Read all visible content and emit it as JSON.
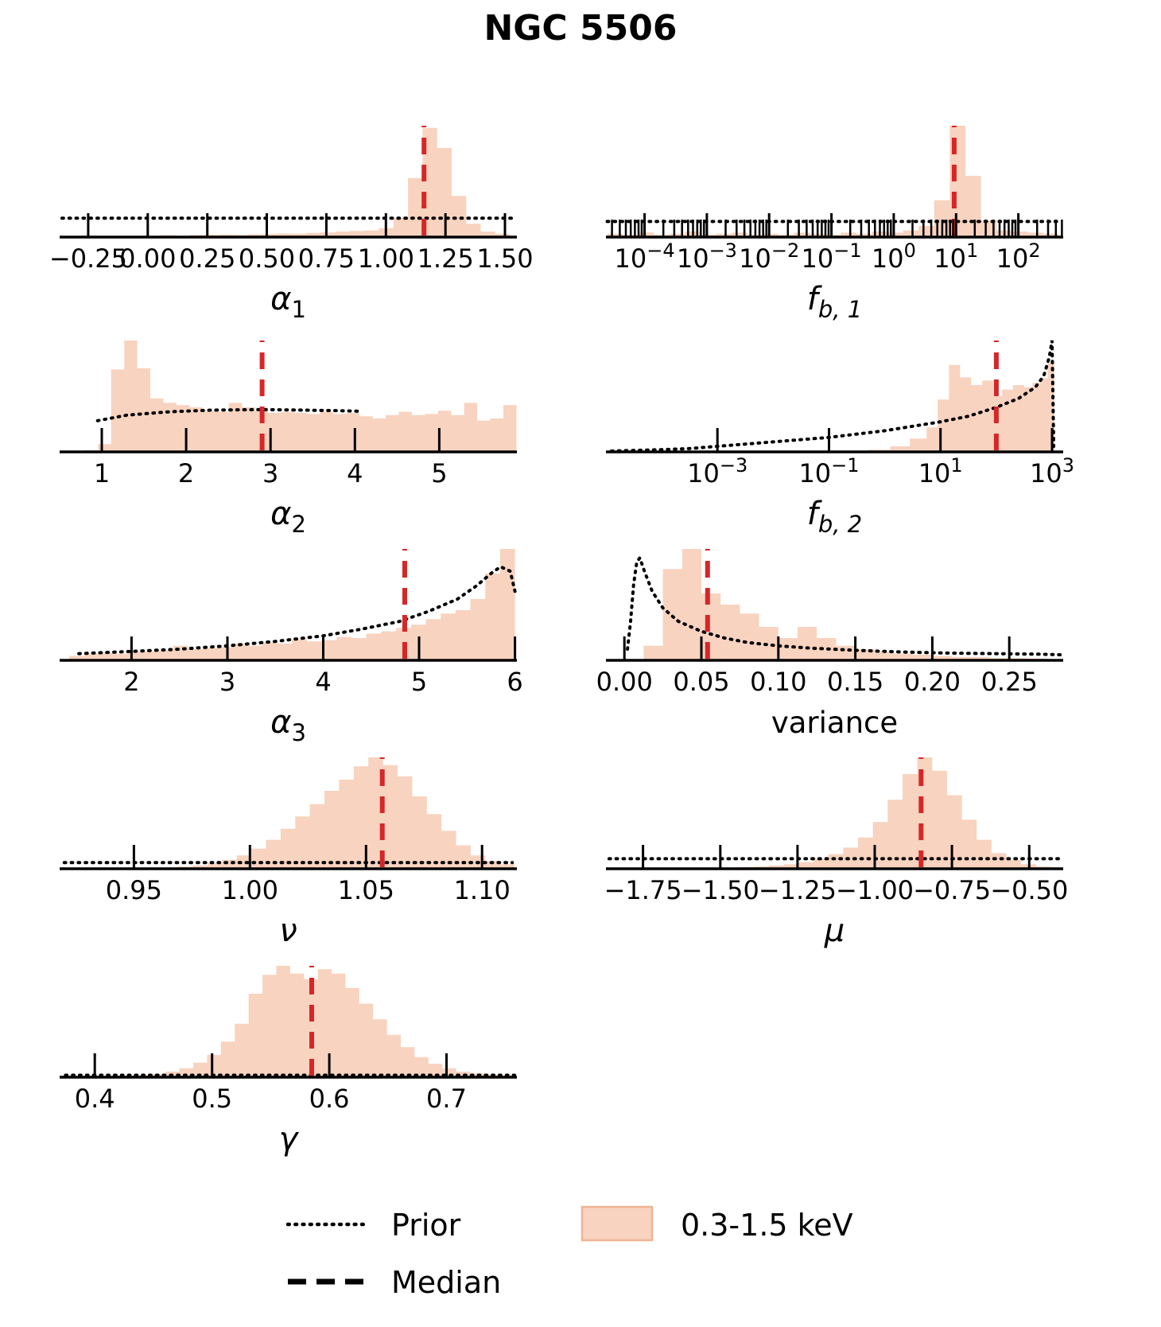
{
  "title": "NGC 5506",
  "colors": {
    "hist_fill": "#f8d3bf",
    "hist_edge": "#f0b493",
    "median": "#d62728",
    "prior": "#000000",
    "axis": "#000000"
  },
  "legend": {
    "prior_label": "Prior",
    "median_label": "Median",
    "series_label": "0.3-1.5 keV"
  },
  "chart_data": [
    {
      "id": "alpha1",
      "type": "bar",
      "row": 0,
      "col": 0,
      "xlabel": {
        "main": "α",
        "sub": "1",
        "italic": true
      },
      "xscale": "linear",
      "xlim": [
        -0.37,
        1.55
      ],
      "minor_ticks": false,
      "ticks": [
        {
          "v": -0.25,
          "label": "−0.25"
        },
        {
          "v": 0.0,
          "label": "0.00"
        },
        {
          "v": 0.25,
          "label": "0.25"
        },
        {
          "v": 0.5,
          "label": "0.50"
        },
        {
          "v": 0.75,
          "label": "0.75"
        },
        {
          "v": 1.0,
          "label": "1.00"
        },
        {
          "v": 1.25,
          "label": "1.25"
        },
        {
          "v": 1.5,
          "label": "1.50"
        }
      ],
      "bins": {
        "start": -0.31,
        "width": 0.061,
        "heights": [
          0,
          0,
          0,
          0,
          0,
          0,
          0.015,
          0.01,
          0.018,
          0.02,
          0.022,
          0.02,
          0.025,
          0.028,
          0.032,
          0.03,
          0.038,
          0.042,
          0.05,
          0.055,
          0.06,
          0.08,
          0.17,
          0.53,
          0.98,
          0.8,
          0.37,
          0.12,
          0.05,
          0.03
        ]
      },
      "median": 1.16,
      "prior": [
        [
          -0.36,
          0.17
        ],
        [
          1.54,
          0.17
        ]
      ]
    },
    {
      "id": "fb1",
      "type": "bar",
      "row": 0,
      "col": 1,
      "xlabel": {
        "main": "f",
        "sub": "b, 1",
        "italic": true
      },
      "xscale": "log",
      "xlim": [
        -4.62,
        2.72
      ],
      "minor_ticks": true,
      "ticks": [
        {
          "v": -4,
          "label": "10",
          "sup": "−4"
        },
        {
          "v": -3,
          "label": "10",
          "sup": "−3"
        },
        {
          "v": -2,
          "label": "10",
          "sup": "−2"
        },
        {
          "v": -1,
          "label": "10",
          "sup": "−1"
        },
        {
          "v": 0,
          "label": "10",
          "sup": "0"
        },
        {
          "v": 1,
          "label": "10",
          "sup": "1"
        },
        {
          "v": 2,
          "label": "10",
          "sup": "2"
        }
      ],
      "bins": {
        "start": -4.6,
        "width": 0.25,
        "heights": [
          0.03,
          0.02,
          0.04,
          0.02,
          0.03,
          0.05,
          0.02,
          0.03,
          0.04,
          0.02,
          0.03,
          0.02,
          0.04,
          0.03,
          0.02,
          0.04,
          0.03,
          0.05,
          0.04,
          0.06,
          0.1,
          0.33,
          1.0,
          0.55,
          0.15,
          0.06,
          0.05,
          0.04,
          0.03
        ]
      },
      "median": 0.97,
      "prior": [
        [
          -4.6,
          0.14
        ],
        [
          2.7,
          0.14
        ]
      ]
    },
    {
      "id": "alpha2",
      "type": "bar",
      "row": 1,
      "col": 0,
      "xlabel": {
        "main": "α",
        "sub": "2",
        "italic": true
      },
      "xscale": "linear",
      "xlim": [
        0.5,
        5.92
      ],
      "minor_ticks": false,
      "ticks": [
        {
          "v": 1,
          "label": "1"
        },
        {
          "v": 2,
          "label": "2"
        },
        {
          "v": 3,
          "label": "3"
        },
        {
          "v": 4,
          "label": "4"
        },
        {
          "v": 5,
          "label": "5"
        }
      ],
      "bins": {
        "start": 0.8,
        "width": 0.155,
        "heights": [
          0.015,
          0.07,
          0.74,
          1.0,
          0.75,
          0.48,
          0.44,
          0.42,
          0.4,
          0.37,
          0.36,
          0.44,
          0.4,
          0.37,
          0.35,
          0.36,
          0.35,
          0.34,
          0.36,
          0.34,
          0.35,
          0.32,
          0.3,
          0.33,
          0.36,
          0.33,
          0.34,
          0.37,
          0.33,
          0.44,
          0.28,
          0.3,
          0.42
        ]
      },
      "median": 2.9,
      "prior": [
        [
          0.95,
          0.28
        ],
        [
          1.3,
          0.33
        ],
        [
          1.8,
          0.36
        ],
        [
          2.3,
          0.375
        ],
        [
          2.9,
          0.38
        ],
        [
          3.4,
          0.375
        ],
        [
          3.8,
          0.37
        ],
        [
          4.05,
          0.365
        ]
      ]
    },
    {
      "id": "fb2",
      "type": "bar",
      "row": 1,
      "col": 1,
      "xlabel": {
        "main": "f",
        "sub": "b, 2",
        "italic": true
      },
      "xscale": "log",
      "xlim": [
        -5.0,
        3.2
      ],
      "minor_ticks": false,
      "ticks": [
        {
          "v": -3,
          "label": "10",
          "sup": "−3"
        },
        {
          "v": -1,
          "label": "10",
          "sup": "−1"
        },
        {
          "v": 1,
          "label": "10",
          "sup": "1"
        },
        {
          "v": 3,
          "label": "10",
          "sup": "3"
        }
      ],
      "bins": {
        "edges": [
          -0.3,
          0.1,
          0.45,
          0.75,
          0.95,
          1.15,
          1.35,
          1.55,
          1.75,
          1.95,
          2.1,
          2.3,
          2.5,
          2.65,
          2.8,
          2.92,
          3.04
        ],
        "heights": [
          0.02,
          0.05,
          0.12,
          0.22,
          0.47,
          0.78,
          0.67,
          0.6,
          0.64,
          0.5,
          0.56,
          0.6,
          0.58,
          0.62,
          0.66,
          0.8
        ]
      },
      "median": 2.0,
      "prior": [
        [
          -4.9,
          0.008
        ],
        [
          -4,
          0.02
        ],
        [
          -3.5,
          0.03
        ],
        [
          -3,
          0.05
        ],
        [
          -2.5,
          0.07
        ],
        [
          -2,
          0.09
        ],
        [
          -1.5,
          0.11
        ],
        [
          -1,
          0.13
        ],
        [
          -0.5,
          0.16
        ],
        [
          0,
          0.19
        ],
        [
          0.5,
          0.23
        ],
        [
          1,
          0.27
        ],
        [
          1.5,
          0.32
        ],
        [
          2,
          0.4
        ],
        [
          2.4,
          0.48
        ],
        [
          2.7,
          0.58
        ],
        [
          2.85,
          0.68
        ],
        [
          2.95,
          0.85
        ],
        [
          3.0,
          1.0
        ],
        [
          3.03,
          0.05
        ]
      ]
    },
    {
      "id": "alpha3",
      "type": "bar",
      "row": 2,
      "col": 0,
      "xlabel": {
        "main": "α",
        "sub": "3",
        "italic": true
      },
      "xscale": "linear",
      "xlim": [
        1.25,
        6.02
      ],
      "minor_ticks": false,
      "ticks": [
        {
          "v": 2,
          "label": "2"
        },
        {
          "v": 3,
          "label": "3"
        },
        {
          "v": 4,
          "label": "4"
        },
        {
          "v": 5,
          "label": "5"
        },
        {
          "v": 6,
          "label": "6"
        }
      ],
      "bins": {
        "start": 1.35,
        "width": 0.155,
        "heights": [
          0.04,
          0.06,
          0.07,
          0.06,
          0.08,
          0.08,
          0.09,
          0.13,
          0.1,
          0.11,
          0.12,
          0.15,
          0.13,
          0.16,
          0.15,
          0.19,
          0.17,
          0.18,
          0.21,
          0.2,
          0.24,
          0.26,
          0.29,
          0.32,
          0.37,
          0.42,
          0.45,
          0.55,
          0.78,
          1.0
        ]
      },
      "median": 4.85,
      "prior": [
        [
          1.45,
          0.06
        ],
        [
          2,
          0.08
        ],
        [
          2.5,
          0.1
        ],
        [
          3,
          0.13
        ],
        [
          3.5,
          0.17
        ],
        [
          4,
          0.22
        ],
        [
          4.4,
          0.28
        ],
        [
          4.8,
          0.35
        ],
        [
          5.1,
          0.44
        ],
        [
          5.4,
          0.55
        ],
        [
          5.6,
          0.67
        ],
        [
          5.75,
          0.78
        ],
        [
          5.85,
          0.84
        ],
        [
          5.95,
          0.8
        ],
        [
          6.0,
          0.62
        ]
      ]
    },
    {
      "id": "variance",
      "type": "bar",
      "row": 2,
      "col": 1,
      "xlabel": {
        "main": "variance",
        "sub": "",
        "italic": false
      },
      "xscale": "linear",
      "xlim": [
        -0.012,
        0.285
      ],
      "minor_ticks": false,
      "ticks": [
        {
          "v": 0.0,
          "label": "0.00"
        },
        {
          "v": 0.05,
          "label": "0.05"
        },
        {
          "v": 0.1,
          "label": "0.10"
        },
        {
          "v": 0.15,
          "label": "0.15"
        },
        {
          "v": 0.2,
          "label": "0.20"
        },
        {
          "v": 0.25,
          "label": "0.25"
        }
      ],
      "bins": {
        "start": 0.0125,
        "width": 0.0125,
        "heights": [
          0.13,
          0.82,
          1.0,
          0.6,
          0.5,
          0.42,
          0.3,
          0.2,
          0.3,
          0.2,
          0.13,
          0.1,
          0.08,
          0.06,
          0.05,
          0.04,
          0.03,
          0.03,
          0.02,
          0.02,
          0.015
        ]
      },
      "median": 0.054,
      "prior": [
        [
          0.002,
          0.1
        ],
        [
          0.004,
          0.35
        ],
        [
          0.006,
          0.68
        ],
        [
          0.008,
          0.88
        ],
        [
          0.01,
          0.92
        ],
        [
          0.013,
          0.8
        ],
        [
          0.018,
          0.62
        ],
        [
          0.025,
          0.47
        ],
        [
          0.035,
          0.35
        ],
        [
          0.05,
          0.26
        ],
        [
          0.065,
          0.2
        ],
        [
          0.08,
          0.16
        ],
        [
          0.1,
          0.13
        ],
        [
          0.12,
          0.11
        ],
        [
          0.15,
          0.09
        ],
        [
          0.18,
          0.075
        ],
        [
          0.21,
          0.065
        ],
        [
          0.24,
          0.06
        ],
        [
          0.27,
          0.055
        ],
        [
          0.283,
          0.05
        ]
      ]
    },
    {
      "id": "nu",
      "type": "bar",
      "row": 3,
      "col": 0,
      "xlabel": {
        "main": "ν",
        "sub": "",
        "italic": true
      },
      "xscale": "linear",
      "xlim": [
        0.918,
        1.115
      ],
      "minor_ticks": false,
      "ticks": [
        {
          "v": 0.95,
          "label": "0.95"
        },
        {
          "v": 1.0,
          "label": "1.00"
        },
        {
          "v": 1.05,
          "label": "1.05"
        },
        {
          "v": 1.1,
          "label": "1.10"
        }
      ],
      "bins": {
        "start": 0.925,
        "width": 0.0063,
        "heights": [
          0,
          0,
          0,
          0,
          0.005,
          0.01,
          0.012,
          0.02,
          0.03,
          0.05,
          0.08,
          0.12,
          0.18,
          0.26,
          0.36,
          0.47,
          0.58,
          0.7,
          0.8,
          0.92,
          1.0,
          0.93,
          0.83,
          0.65,
          0.49,
          0.34,
          0.21,
          0.12,
          0.07,
          0.04
        ]
      },
      "median": 1.057,
      "prior": [
        [
          0.92,
          0.055
        ],
        [
          1.113,
          0.055
        ]
      ]
    },
    {
      "id": "mu",
      "type": "bar",
      "row": 3,
      "col": 1,
      "xlabel": {
        "main": "μ",
        "sub": "",
        "italic": true
      },
      "xscale": "linear",
      "xlim": [
        -1.87,
        -0.39
      ],
      "minor_ticks": false,
      "ticks": [
        {
          "v": -1.75,
          "label": "−1.75"
        },
        {
          "v": -1.5,
          "label": "−1.50"
        },
        {
          "v": -1.25,
          "label": "−1.25"
        },
        {
          "v": -1.0,
          "label": "−1.00"
        },
        {
          "v": -0.75,
          "label": "−0.75"
        },
        {
          "v": -0.5,
          "label": "−0.50"
        }
      ],
      "bins": {
        "start": -1.87,
        "width": 0.048,
        "heights": [
          0,
          0,
          0,
          0,
          0,
          0,
          0.005,
          0.008,
          0.01,
          0.015,
          0.02,
          0.03,
          0.04,
          0.06,
          0.09,
          0.13,
          0.19,
          0.28,
          0.42,
          0.62,
          0.85,
          1.0,
          0.88,
          0.66,
          0.44,
          0.26,
          0.14,
          0.08,
          0.04,
          0.02
        ]
      },
      "median": -0.85,
      "prior": [
        [
          -1.86,
          0.09
        ],
        [
          -0.4,
          0.09
        ]
      ]
    },
    {
      "id": "gamma",
      "type": "bar",
      "row": 4,
      "col": 0,
      "xlabel": {
        "main": "γ",
        "sub": "",
        "italic": true
      },
      "xscale": "linear",
      "xlim": [
        0.37,
        0.76
      ],
      "minor_ticks": false,
      "ticks": [
        {
          "v": 0.4,
          "label": "0.4"
        },
        {
          "v": 0.5,
          "label": "0.5"
        },
        {
          "v": 0.6,
          "label": "0.6"
        },
        {
          "v": 0.7,
          "label": "0.7"
        }
      ],
      "bins": {
        "start": 0.425,
        "width": 0.0118,
        "heights": [
          0.01,
          0.02,
          0.03,
          0.05,
          0.08,
          0.13,
          0.2,
          0.32,
          0.48,
          0.75,
          0.92,
          1.0,
          0.93,
          0.88,
          0.97,
          0.93,
          0.8,
          0.66,
          0.52,
          0.38,
          0.27,
          0.18,
          0.12,
          0.08,
          0.05,
          0.035,
          0.025,
          0.015
        ]
      },
      "median": 0.585,
      "prior": [
        [
          0.375,
          0.018
        ],
        [
          0.758,
          0.018
        ]
      ]
    }
  ]
}
